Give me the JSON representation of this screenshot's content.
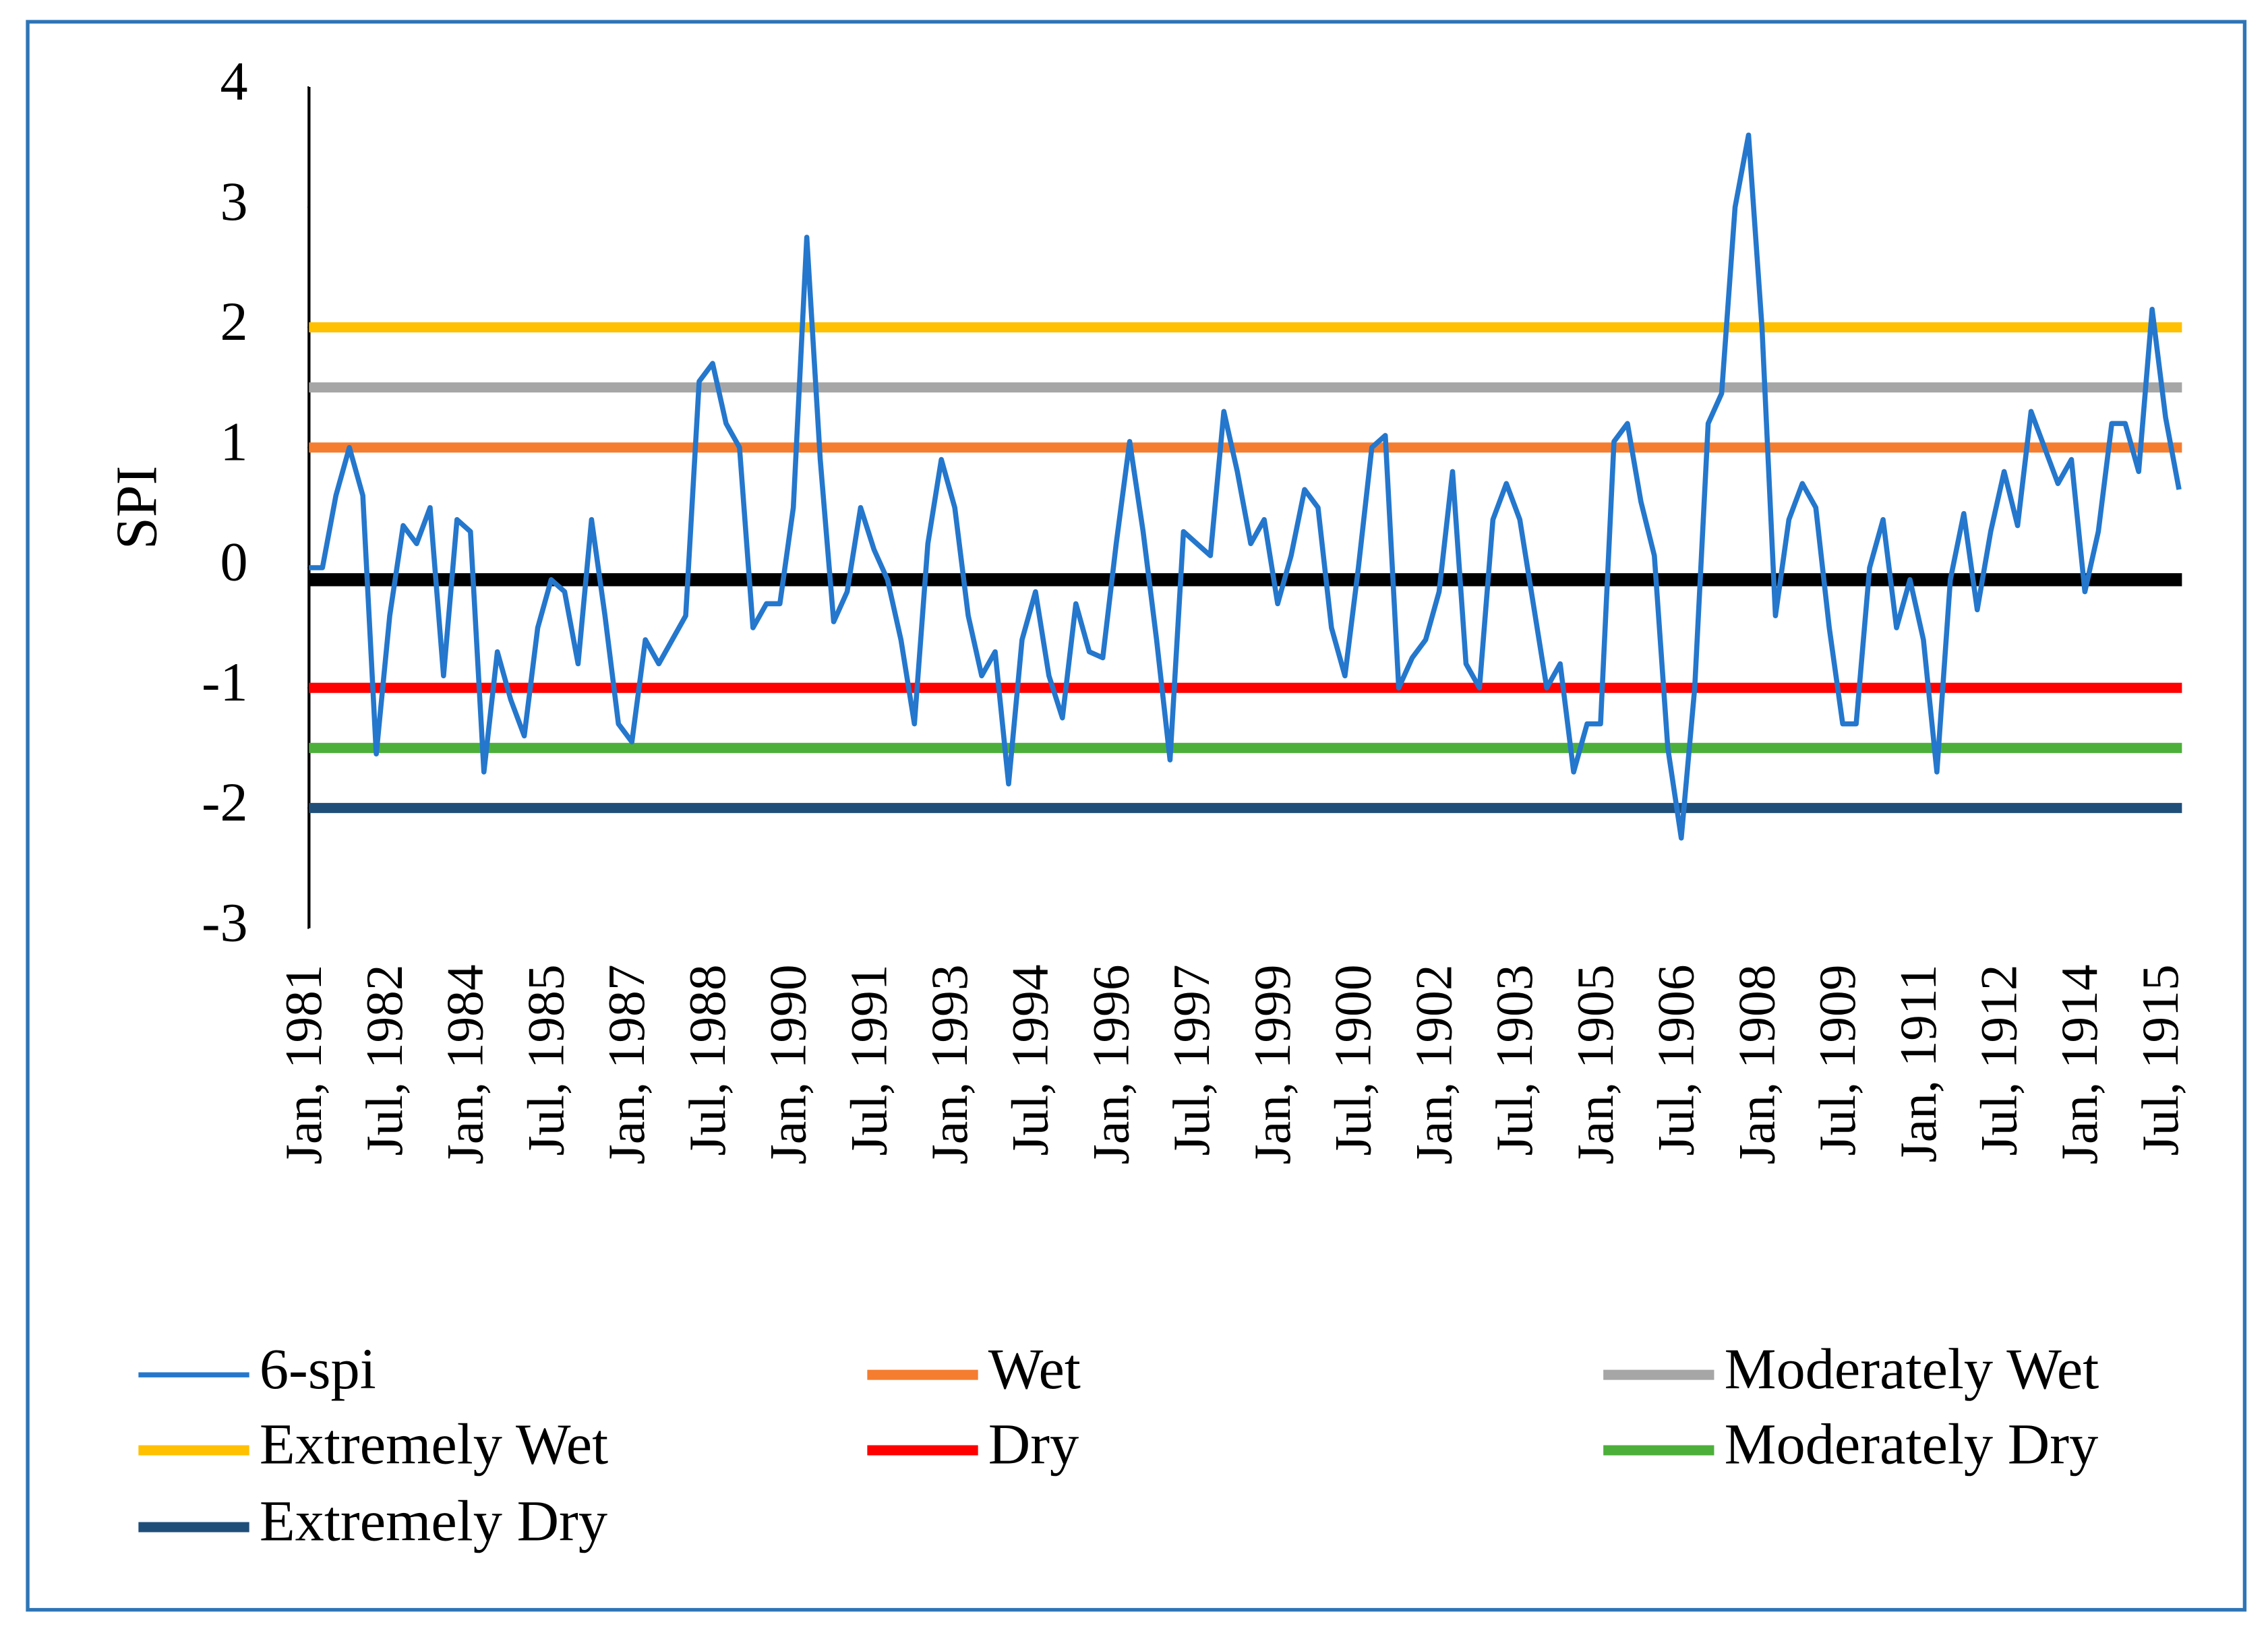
{
  "chart_data": {
    "type": "line",
    "y_label": "SPI",
    "ylim": [
      -3,
      4
    ],
    "yticks": [
      -3,
      -2,
      -1,
      0,
      1,
      2,
      3,
      4
    ],
    "categories": [
      "Jan, 1981",
      null,
      null,
      null,
      null,
      null,
      "Jul, 1982",
      null,
      null,
      null,
      null,
      null,
      "Jan, 1984",
      null,
      null,
      null,
      null,
      null,
      "Jul, 1985",
      null,
      null,
      null,
      null,
      null,
      "Jan, 1987",
      null,
      null,
      null,
      null,
      null,
      "Jul, 1988",
      null,
      null,
      null,
      null,
      null,
      "Jan, 1990",
      null,
      null,
      null,
      null,
      null,
      "Jul, 1991",
      null,
      null,
      null,
      null,
      null,
      "Jan, 1993",
      null,
      null,
      null,
      null,
      null,
      "Jul, 1994",
      null,
      null,
      null,
      null,
      null,
      "Jan, 1996",
      null,
      null,
      null,
      null,
      null,
      "Jul, 1997",
      null,
      null,
      null,
      null,
      null,
      "Jan, 1999",
      null,
      null,
      null,
      null,
      null,
      "Jul, 1900",
      null,
      null,
      null,
      null,
      null,
      "Jan, 1902",
      null,
      null,
      null,
      null,
      null,
      "Jul, 1903",
      null,
      null,
      null,
      null,
      null,
      "Jan, 1905",
      null,
      null,
      null,
      null,
      null,
      "Jul, 1906",
      null,
      null,
      null,
      null,
      null,
      "Jan, 1908",
      null,
      null,
      null,
      null,
      null,
      "Jul, 1909",
      null,
      null,
      null,
      null,
      null,
      "Jan, 1911",
      null,
      null,
      null,
      null,
      null,
      "Jul, 1912",
      null,
      null,
      null,
      null,
      null,
      "Jan, 1914",
      null,
      null,
      null,
      null,
      null,
      "Jul, 1915",
      null
    ],
    "series": [
      {
        "name": "6-spi",
        "color": "#2477cc",
        "values": [
          0,
          0,
          0.6,
          1.0,
          0.6,
          -1.55,
          -0.4,
          0.35,
          0.2,
          0.5,
          -0.9,
          0.4,
          0.3,
          -1.7,
          -0.7,
          -1.1,
          -1.4,
          -0.5,
          -0.1,
          -0.2,
          -0.8,
          0.4,
          -0.4,
          -1.3,
          -1.45,
          -0.6,
          -0.8,
          -0.6,
          -0.4,
          1.55,
          1.7,
          1.2,
          1.0,
          -0.5,
          -0.3,
          -0.3,
          0.5,
          2.75,
          0.9,
          -0.45,
          -0.2,
          0.5,
          0.15,
          -0.1,
          -0.6,
          -1.3,
          0.2,
          0.9,
          0.5,
          -0.4,
          -0.9,
          -0.7,
          -1.8,
          -0.6,
          -0.2,
          -0.9,
          -1.25,
          -0.3,
          -0.7,
          -0.75,
          0.2,
          1.05,
          0.3,
          -0.6,
          -1.6,
          0.3,
          0.2,
          0.1,
          1.3,
          0.8,
          0.2,
          0.4,
          -0.3,
          0.1,
          0.65,
          0.5,
          -0.5,
          -0.9,
          0.0,
          1.0,
          1.1,
          -1.0,
          -0.75,
          -0.6,
          -0.2,
          0.8,
          -0.8,
          -1.0,
          0.4,
          0.7,
          0.4,
          -0.3,
          -1.0,
          -0.8,
          -1.7,
          -1.3,
          -1.3,
          1.05,
          1.2,
          0.55,
          0.1,
          -1.5,
          -2.25,
          -1.0,
          1.2,
          1.45,
          3.0,
          3.6,
          2.0,
          -0.4,
          0.4,
          0.7,
          0.5,
          -0.5,
          -1.3,
          -1.3,
          0.0,
          0.4,
          -0.5,
          -0.1,
          -0.6,
          -1.7,
          -0.1,
          0.45,
          -0.35,
          0.3,
          0.8,
          0.35,
          1.3,
          1.0,
          0.7,
          0.9,
          -0.2,
          0.3,
          1.2,
          1.2,
          0.8,
          2.15,
          1.25,
          0.65
        ]
      }
    ],
    "thresholds": [
      {
        "name": "Wet",
        "color": "#f47d30",
        "value": 1
      },
      {
        "name": "Moderately Wet",
        "color": "#a6a6a6",
        "value": 1.5
      },
      {
        "name": "Extremely Wet",
        "color": "#ffc000",
        "value": 2
      },
      {
        "name": "Dry",
        "color": "#ff0000",
        "value": -1
      },
      {
        "name": "Moderately Dry",
        "color": "#4caf3a",
        "value": -1.5
      },
      {
        "name": "Extremely Dry",
        "color": "#1f4e79",
        "value": -2
      }
    ],
    "reference_line": {
      "value": -0.1,
      "color": "#000000"
    }
  }
}
